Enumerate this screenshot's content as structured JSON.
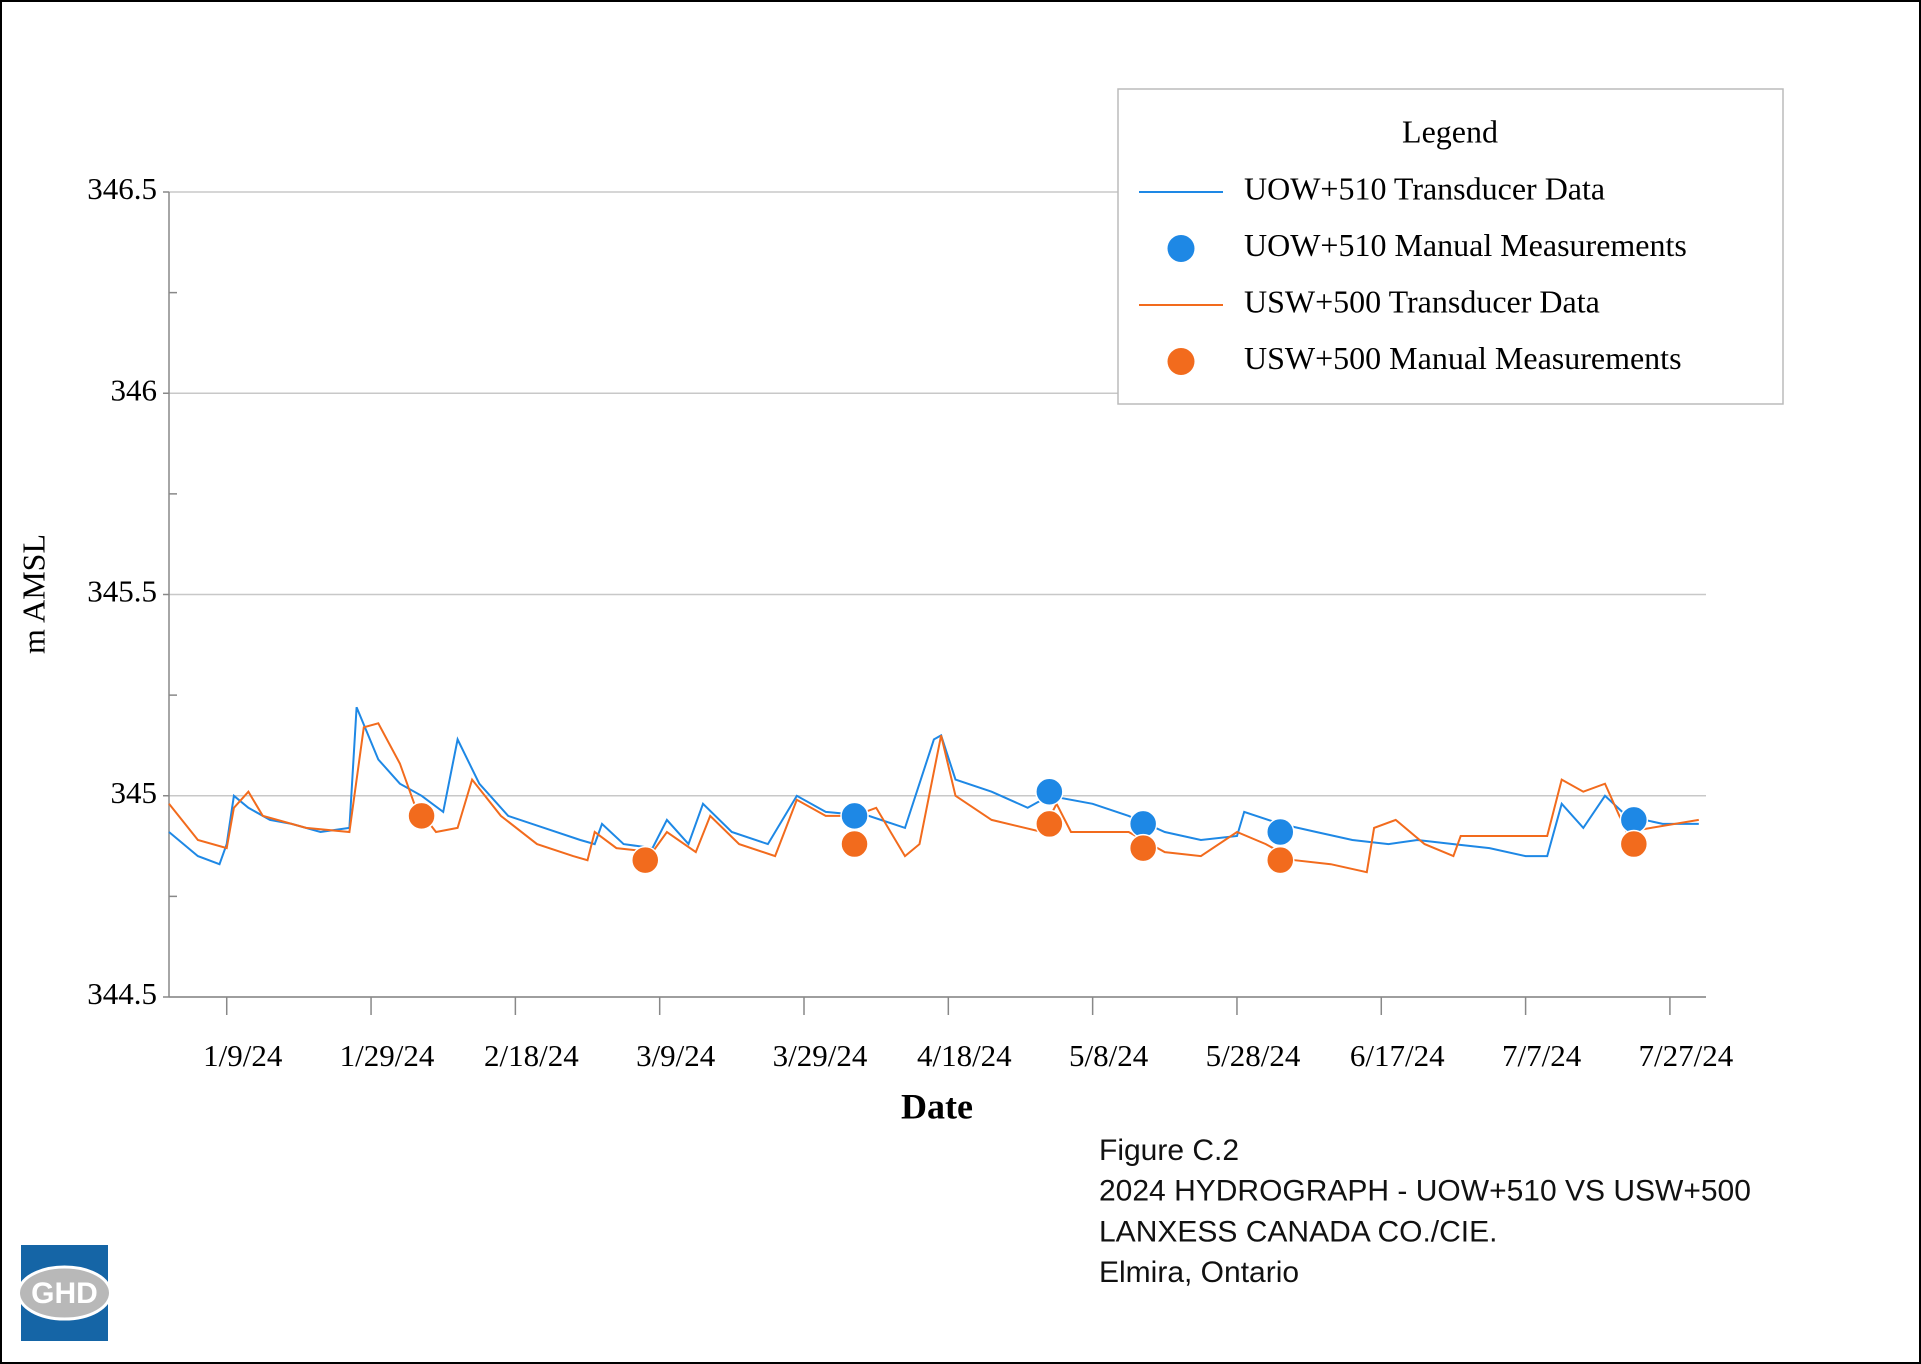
{
  "chart_data": {
    "type": "line",
    "xlabel": "Date",
    "ylabel": "m AMSL",
    "legend_title": "Legend",
    "legend": "upper-right",
    "grid": true,
    "xlim": [
      "2024-01-01",
      "2024-08-01"
    ],
    "xticks": [
      {
        "value": "2024-01-09",
        "label": "1/9/24"
      },
      {
        "value": "2024-01-29",
        "label": "1/29/24"
      },
      {
        "value": "2024-02-18",
        "label": "2/18/24"
      },
      {
        "value": "2024-03-09",
        "label": "3/9/24"
      },
      {
        "value": "2024-03-29",
        "label": "3/29/24"
      },
      {
        "value": "2024-04-18",
        "label": "4/18/24"
      },
      {
        "value": "2024-05-08",
        "label": "5/8/24"
      },
      {
        "value": "2024-05-28",
        "label": "5/28/24"
      },
      {
        "value": "2024-06-17",
        "label": "6/17/24"
      },
      {
        "value": "2024-07-07",
        "label": "7/7/24"
      },
      {
        "value": "2024-07-27",
        "label": "7/27/24"
      }
    ],
    "ylim": [
      344.5,
      346.5
    ],
    "yticks": [
      344.5,
      345,
      345.5,
      346,
      346.5
    ],
    "yminorticks": [
      344.75,
      345.25,
      345.75,
      346.25
    ],
    "series": [
      {
        "name": "UOW+510 Transducer Data",
        "type": "line",
        "color": "#1e88e5",
        "x": [
          "2024-01-01",
          "2024-01-05",
          "2024-01-08",
          "2024-01-09",
          "2024-01-10",
          "2024-01-12",
          "2024-01-15",
          "2024-01-18",
          "2024-01-22",
          "2024-01-26",
          "2024-01-27",
          "2024-01-30",
          "2024-02-02",
          "2024-02-05",
          "2024-02-08",
          "2024-02-10",
          "2024-02-13",
          "2024-02-17",
          "2024-02-22",
          "2024-02-27",
          "2024-02-29",
          "2024-03-01",
          "2024-03-04",
          "2024-03-08",
          "2024-03-10",
          "2024-03-13",
          "2024-03-15",
          "2024-03-19",
          "2024-03-24",
          "2024-03-28",
          "2024-04-01",
          "2024-04-07",
          "2024-04-12",
          "2024-04-16",
          "2024-04-17",
          "2024-04-19",
          "2024-04-24",
          "2024-04-29",
          "2024-05-02",
          "2024-05-08",
          "2024-05-13",
          "2024-05-18",
          "2024-05-23",
          "2024-05-28",
          "2024-05-29",
          "2024-06-03",
          "2024-06-08",
          "2024-06-13",
          "2024-06-18",
          "2024-06-22",
          "2024-06-27",
          "2024-07-02",
          "2024-07-07",
          "2024-07-10",
          "2024-07-12",
          "2024-07-15",
          "2024-07-18",
          "2024-07-21",
          "2024-07-26",
          "2024-07-31"
        ],
        "values": [
          344.91,
          344.85,
          344.83,
          344.88,
          345.0,
          344.97,
          344.94,
          344.93,
          344.91,
          344.92,
          345.22,
          345.09,
          345.03,
          345.0,
          344.96,
          345.14,
          345.03,
          344.95,
          344.92,
          344.89,
          344.88,
          344.93,
          344.88,
          344.87,
          344.94,
          344.88,
          344.98,
          344.91,
          344.88,
          345.0,
          344.96,
          344.95,
          344.92,
          345.14,
          345.15,
          345.04,
          345.01,
          344.97,
          345.0,
          344.98,
          344.95,
          344.91,
          344.89,
          344.9,
          344.96,
          344.93,
          344.91,
          344.89,
          344.88,
          344.89,
          344.88,
          344.87,
          344.85,
          344.85,
          344.98,
          344.92,
          345.0,
          344.95,
          344.93,
          344.93
        ]
      },
      {
        "name": "UOW+510 Manual Measurements",
        "type": "scatter",
        "color": "#1e88e5",
        "x": [
          "2024-04-05",
          "2024-05-02",
          "2024-05-15",
          "2024-06-03",
          "2024-07-22"
        ],
        "values": [
          344.95,
          345.01,
          344.93,
          344.91,
          344.94
        ]
      },
      {
        "name": "USW+500 Transducer Data",
        "type": "line",
        "color": "#f26b1d",
        "x": [
          "2024-01-01",
          "2024-01-05",
          "2024-01-09",
          "2024-01-10",
          "2024-01-12",
          "2024-01-14",
          "2024-01-20",
          "2024-01-26",
          "2024-01-28",
          "2024-01-30",
          "2024-02-02",
          "2024-02-04",
          "2024-02-07",
          "2024-02-10",
          "2024-02-12",
          "2024-02-16",
          "2024-02-21",
          "2024-02-26",
          "2024-02-28",
          "2024-02-29",
          "2024-03-03",
          "2024-03-08",
          "2024-03-10",
          "2024-03-14",
          "2024-03-16",
          "2024-03-20",
          "2024-03-25",
          "2024-03-28",
          "2024-04-01",
          "2024-04-05",
          "2024-04-08",
          "2024-04-12",
          "2024-04-14",
          "2024-04-17",
          "2024-04-19",
          "2024-04-24",
          "2024-05-01",
          "2024-05-03",
          "2024-05-05",
          "2024-05-13",
          "2024-05-18",
          "2024-05-23",
          "2024-05-28",
          "2024-06-01",
          "2024-06-05",
          "2024-06-10",
          "2024-06-15",
          "2024-06-16",
          "2024-06-19",
          "2024-06-23",
          "2024-06-27",
          "2024-06-28",
          "2024-07-10",
          "2024-07-12",
          "2024-07-15",
          "2024-07-18",
          "2024-07-21",
          "2024-07-31"
        ],
        "values": [
          344.98,
          344.89,
          344.87,
          344.97,
          345.01,
          344.95,
          344.92,
          344.91,
          345.17,
          345.18,
          345.08,
          344.98,
          344.91,
          344.92,
          345.04,
          344.95,
          344.88,
          344.85,
          344.84,
          344.91,
          344.87,
          344.86,
          344.91,
          344.86,
          344.95,
          344.88,
          344.85,
          344.99,
          344.95,
          344.95,
          344.97,
          344.85,
          344.88,
          345.15,
          345.0,
          344.94,
          344.91,
          344.98,
          344.91,
          344.91,
          344.86,
          344.85,
          344.91,
          344.88,
          344.84,
          344.83,
          344.81,
          344.92,
          344.94,
          344.88,
          344.85,
          344.9,
          344.9,
          345.04,
          345.01,
          345.03,
          344.91,
          344.94
        ]
      },
      {
        "name": "USW+500 Manual Measurements",
        "type": "scatter",
        "color": "#f26b1d",
        "x": [
          "2024-02-05",
          "2024-03-07",
          "2024-04-05",
          "2024-05-02",
          "2024-05-15",
          "2024-06-03",
          "2024-07-22"
        ],
        "values": [
          344.95,
          344.84,
          344.88,
          344.93,
          344.87,
          344.84,
          344.88
        ]
      }
    ]
  },
  "caption": [
    "Figure C.2",
    "2024 HYDROGRAPH - UOW+510 VS USW+500",
    "LANXESS CANADA CO./CIE.",
    "Elmira, Ontario"
  ],
  "logo": "GHD"
}
